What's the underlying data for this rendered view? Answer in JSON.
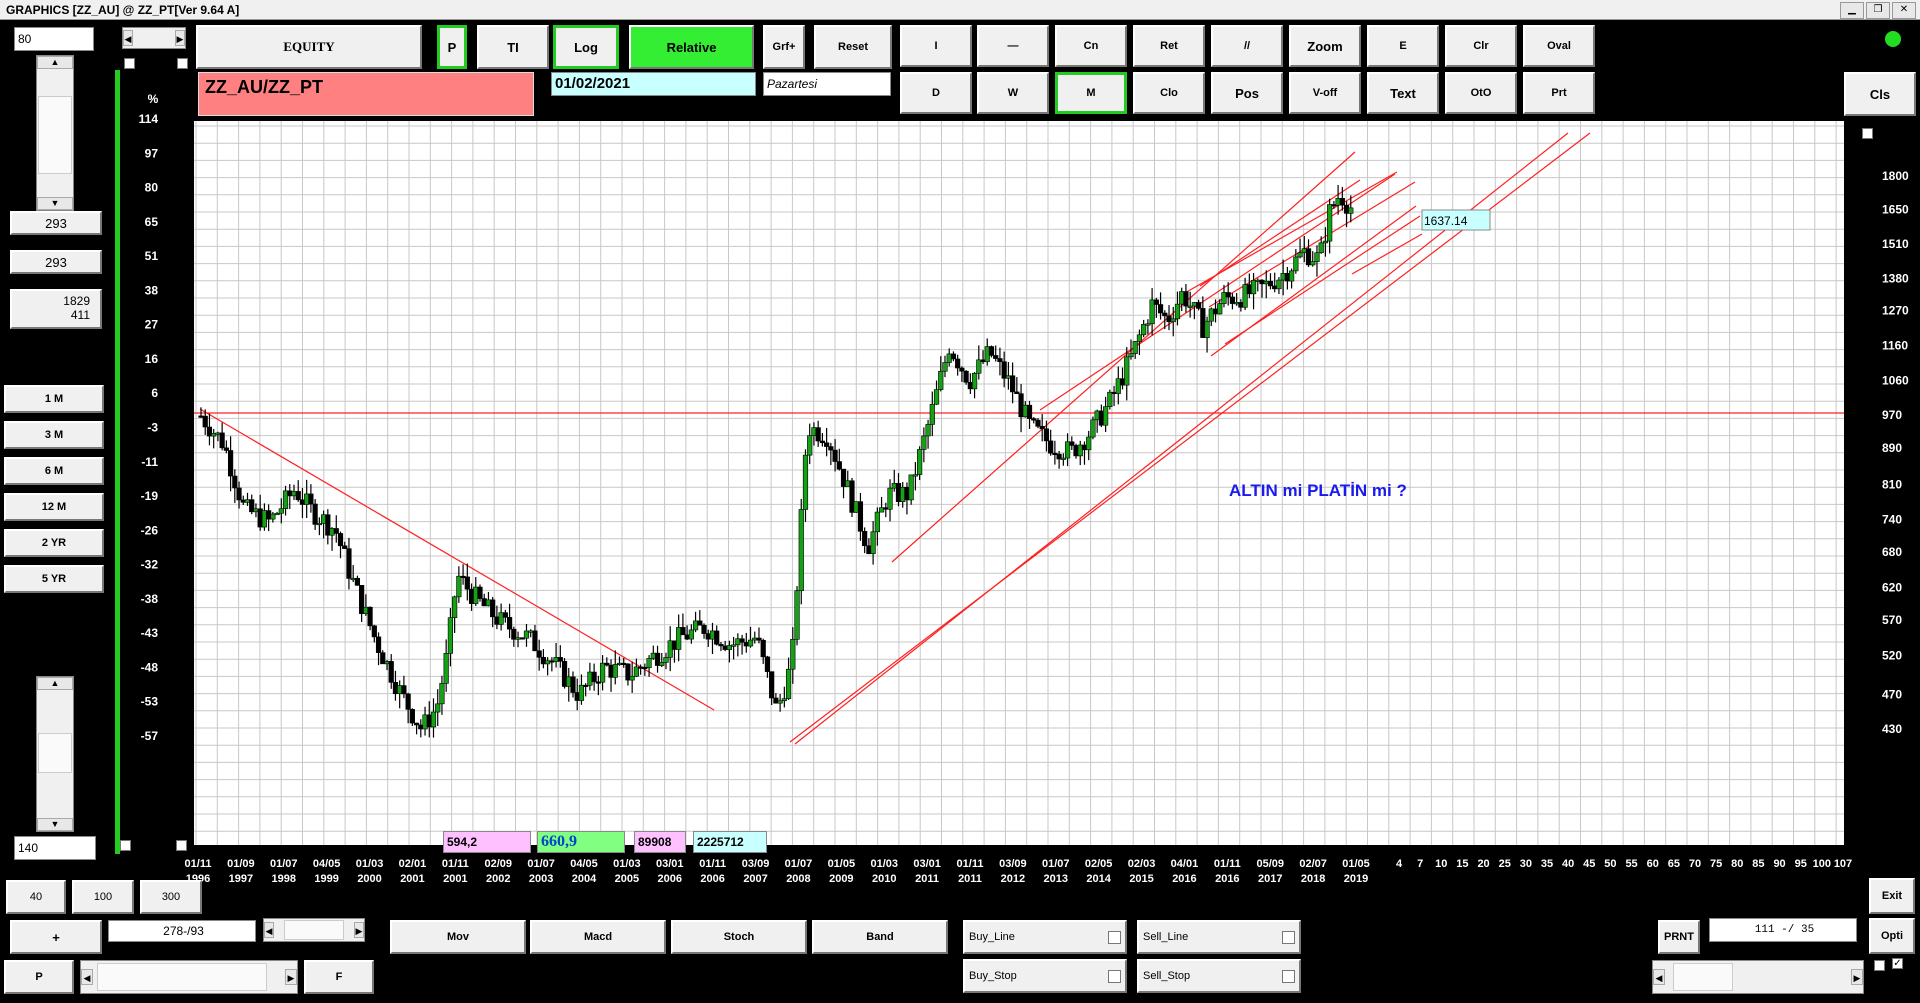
{
  "window": {
    "title": "GRAPHICS  [ZZ_AU] @ ZZ_PT[Ver 9.64 A]"
  },
  "left": {
    "top_input": "80",
    "val1": "293",
    "val2": "293",
    "val3a": "1829",
    "val3b": "411",
    "periods": [
      "1 M",
      "3 M",
      "6 M",
      "12 M",
      "2 YR",
      "5 YR"
    ],
    "bottom_input": "140"
  },
  "toolbar": {
    "equity": "EQUITY",
    "p": "P",
    "ti": "TI",
    "log": "Log",
    "relative": "Relative",
    "grf": "Grf+",
    "reset": "Reset",
    "row1": [
      "I",
      "—",
      "Cn",
      "Ret",
      "//",
      "Zoom",
      "E",
      "Clr",
      "Oval"
    ],
    "row2": [
      "D",
      "W",
      "M",
      "Clo",
      "Pos",
      "V-off",
      "Text",
      "OtO",
      "Prt"
    ],
    "cls": "Cls"
  },
  "symbol": "ZZ_AU/ZZ_PT",
  "date": "01/02/2021",
  "day": "Pazartesi",
  "chart_data": {
    "type": "candlestick",
    "title": "",
    "annotation": "ALTIN mi PLATİN mi ?",
    "last_value_label": "1637.14",
    "left_axis_label": "%",
    "left_axis_ticks": [
      "114",
      "97",
      "80",
      "65",
      "51",
      "38",
      "27",
      "16",
      "6",
      "-3",
      "-11",
      "-19",
      "-26",
      "-32",
      "-38",
      "-43",
      "-48",
      "-53",
      "-57"
    ],
    "right_axis_ticks": [
      "1800",
      "1650",
      "1510",
      "1380",
      "1270",
      "1160",
      "1060",
      "970",
      "890",
      "810",
      "740",
      "680",
      "620",
      "570",
      "520",
      "470",
      "430"
    ],
    "log_scale": true,
    "x_ticks": [
      [
        "01/11",
        "1996"
      ],
      [
        "01/09",
        "1997"
      ],
      [
        "01/07",
        "1998"
      ],
      [
        "04/05",
        "1999"
      ],
      [
        "01/03",
        "2000"
      ],
      [
        "02/01",
        "2001"
      ],
      [
        "01/11",
        "2001"
      ],
      [
        "02/09",
        "2002"
      ],
      [
        "01/07",
        "2003"
      ],
      [
        "04/05",
        "2004"
      ],
      [
        "01/03",
        "2005"
      ],
      [
        "03/01",
        "2006"
      ],
      [
        "01/11",
        "2006"
      ],
      [
        "03/09",
        "2007"
      ],
      [
        "01/07",
        "2008"
      ],
      [
        "01/05",
        "2009"
      ],
      [
        "01/03",
        "2010"
      ],
      [
        "03/01",
        "2011"
      ],
      [
        "01/11",
        "2011"
      ],
      [
        "03/09",
        "2012"
      ],
      [
        "01/07",
        "2013"
      ],
      [
        "02/05",
        "2014"
      ],
      [
        "02/03",
        "2015"
      ],
      [
        "04/01",
        "2016"
      ],
      [
        "01/11",
        "2016"
      ],
      [
        "05/09",
        "2017"
      ],
      [
        "02/07",
        "2018"
      ],
      [
        "01/05",
        "2019"
      ]
    ],
    "x_ext_ticks": [
      "4",
      "7",
      "10",
      "15",
      "20",
      "25",
      "30",
      "35",
      "40",
      "45",
      "50",
      "55",
      "60",
      "65",
      "70",
      "75",
      "80",
      "85",
      "90",
      "95",
      "100",
      "107"
    ],
    "price_path": [
      [
        1996.8,
        975
      ],
      [
        1997.3,
        900
      ],
      [
        1997.7,
        760
      ],
      [
        1998.2,
        735
      ],
      [
        1998.7,
        800
      ],
      [
        1999.0,
        760
      ],
      [
        1999.5,
        720
      ],
      [
        1999.8,
        640
      ],
      [
        2000.3,
        540
      ],
      [
        2000.8,
        470
      ],
      [
        2001.2,
        430
      ],
      [
        2001.5,
        455
      ],
      [
        2001.7,
        520
      ],
      [
        2001.9,
        640
      ],
      [
        2002.3,
        600
      ],
      [
        2002.8,
        565
      ],
      [
        2003.3,
        545
      ],
      [
        2003.8,
        510
      ],
      [
        2004.3,
        470
      ],
      [
        2004.8,
        505
      ],
      [
        2005.3,
        495
      ],
      [
        2005.8,
        520
      ],
      [
        2006.3,
        545
      ],
      [
        2006.8,
        560
      ],
      [
        2007.3,
        535
      ],
      [
        2007.8,
        545
      ],
      [
        2008.2,
        450
      ],
      [
        2008.5,
        510
      ],
      [
        2008.8,
        940
      ],
      [
        2009.2,
        920
      ],
      [
        2009.6,
        800
      ],
      [
        2010.0,
        690
      ],
      [
        2010.4,
        790
      ],
      [
        2010.8,
        790
      ],
      [
        2011.2,
        950
      ],
      [
        2011.6,
        1160
      ],
      [
        2012.0,
        1060
      ],
      [
        2012.4,
        1140
      ],
      [
        2012.8,
        1050
      ],
      [
        2013.2,
        940
      ],
      [
        2013.6,
        900
      ],
      [
        2014.0,
        880
      ],
      [
        2014.4,
        930
      ],
      [
        2014.8,
        1010
      ],
      [
        2015.2,
        1130
      ],
      [
        2015.6,
        1290
      ],
      [
        2015.9,
        1240
      ],
      [
        2016.2,
        1330
      ],
      [
        2016.6,
        1220
      ],
      [
        2017.0,
        1310
      ],
      [
        2017.4,
        1320
      ],
      [
        2017.8,
        1350
      ],
      [
        2018.2,
        1400
      ],
      [
        2018.6,
        1480
      ],
      [
        2018.9,
        1450
      ],
      [
        2019.1,
        1640
      ],
      [
        2019.3,
        1720
      ],
      [
        2019.6,
        1637
      ]
    ],
    "grid": true
  },
  "bottom": {
    "left_btns": [
      "40",
      "100",
      "300"
    ],
    "plus": "+",
    "range": "278-/93",
    "p": "P",
    "f": "F",
    "boxes": [
      "594,2",
      "660,9",
      "89908",
      "2225712"
    ],
    "indicators": [
      "Mov",
      "Macd",
      "Stoch",
      "Band"
    ],
    "buy_line": "Buy_Line",
    "sell_line": "Sell_Line",
    "buy_stop": "Buy_Stop",
    "sell_stop": "Sell_Stop",
    "prnt": "PRNT",
    "ratio": "111 -/ 35",
    "exit": "Exit",
    "opti": "Opti"
  }
}
